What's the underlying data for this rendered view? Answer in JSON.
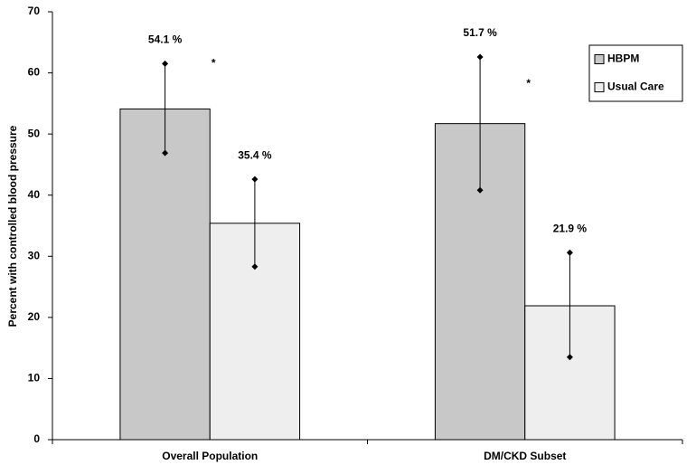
{
  "chart_data": {
    "type": "bar",
    "y_label": "Percent with controlled blood pressure",
    "categories": [
      "Overall Population",
      "DM/CKD Subset"
    ],
    "series": [
      {
        "name": "HBPM",
        "color": "#c8c8c8",
        "values": [
          54.1,
          51.7
        ],
        "value_labels": [
          "54.1 %",
          "51.7 %"
        ],
        "ci_low": [
          46.9,
          40.8
        ],
        "ci_high": [
          61.5,
          62.6
        ]
      },
      {
        "name": "Usual Care",
        "color": "#eeeeee",
        "values": [
          35.4,
          21.9
        ],
        "value_labels": [
          "35.4 %",
          "21.9 %"
        ],
        "ci_low": [
          28.3,
          13.5
        ],
        "ci_high": [
          42.6,
          30.6
        ]
      }
    ],
    "annotations": [
      "*",
      "*"
    ],
    "ylim": [
      0,
      70
    ],
    "yticks": [
      0,
      10,
      20,
      30,
      40,
      50,
      60,
      70
    ],
    "legend": "top-right"
  }
}
